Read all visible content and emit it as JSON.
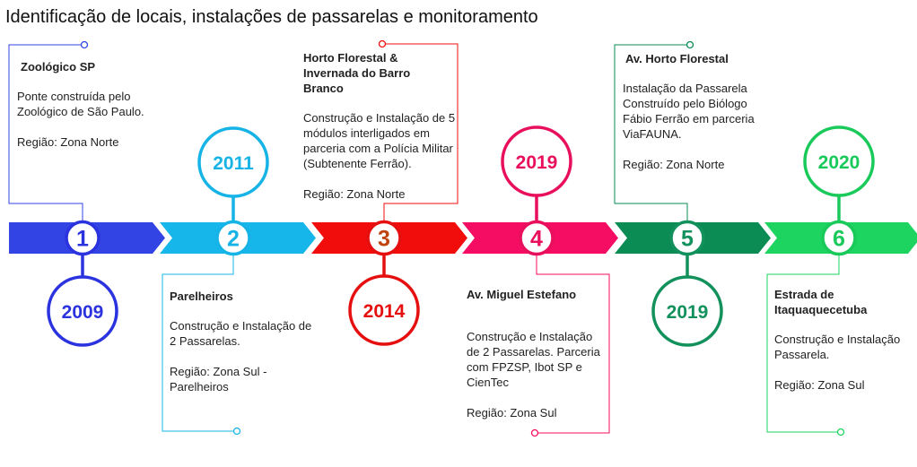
{
  "title": "Identificação de locais, instalações de passarelas e monitoramento",
  "milestones": [
    {
      "number": "1",
      "year": "2009",
      "color": "#3344e4",
      "circle_color": "#2b33df",
      "place": "Zoológico  SP",
      "description": "Ponte construída pelo Zoológico de São Paulo.",
      "region": "Região: Zona Norte"
    },
    {
      "number": "2",
      "year": "2011",
      "color": "#17b6ea",
      "circle_color": "#16b3e6",
      "place": "Parelheiros",
      "description": "Construção e Instalação de 2 Passarelas.",
      "region": "Região: Zona Sul  - Parelheiros"
    },
    {
      "number": "3",
      "year": "2014",
      "color": "#f20d0d",
      "circle_color": "#e60f0f",
      "place": "Horto Florestal & Invernada do Barro Branco",
      "description": "Construção e Instalação de 5 módulos interligados em parceria com a Polícia Militar (Subtenente Ferrão).",
      "region": "Região: Zona Norte"
    },
    {
      "number": "4",
      "year": "2019",
      "color": "#f40d62",
      "circle_color": "#e8105c",
      "place": "Av. Miguel Estefano",
      "description": "Construção e Instalação de 2 Passarelas. Parceria com FPZSP, Ibot SP e CienTec",
      "region": "Região: Zona Sul"
    },
    {
      "number": "5",
      "year": "2019",
      "color": "#0b8c55",
      "circle_color": "#13915c",
      "place": "Av. Horto Florestal",
      "description": "Instalação da Passarela Construído pelo Biólogo Fábio Ferrão em parceria ViaFAUNA.",
      "region": "Região: Zona Norte"
    },
    {
      "number": "6",
      "year": "2020",
      "color": "#1ed460",
      "circle_color": "#19c95a",
      "place": "Estrada de Itaquaquecetuba",
      "description": "Construção e Instalação Passarela.",
      "region": "Região: Zona Sul"
    }
  ]
}
